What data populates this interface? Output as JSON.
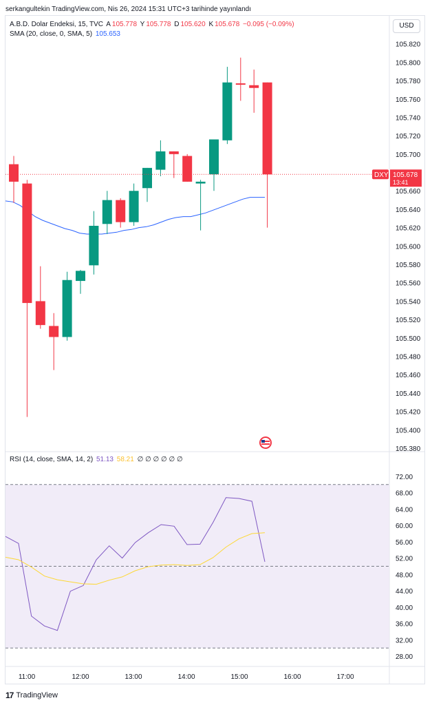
{
  "header": {
    "published": "serkangultekin TradingView.com, Nis 26, 2024 15:31 UTC+3 tarihinde yayınlandı"
  },
  "legend": {
    "symbol": "A.B.D. Dolar Endeksi, 15, TVC",
    "o_label": "A",
    "o_value": "105.778",
    "h_label": "Y",
    "h_value": "105.778",
    "l_label": "D",
    "l_value": "105.620",
    "c_label": "K",
    "c_value": "105.678",
    "change": "−0.095 (−0.09%)",
    "sma_label": "SMA (20, close, 0, SMA, 5)",
    "sma_value": "105.653"
  },
  "rsi_legend": {
    "label": "RSI (14, close, SMA, 14, 2)",
    "rsi_value": "51.13",
    "rsi_ma_value": "58.21",
    "placeholders": "∅ ∅ ∅ ∅ ∅ ∅"
  },
  "currency_button": "USD",
  "price_badge": {
    "symbol": "DXY",
    "price": "105.678",
    "countdown": "13:41"
  },
  "footer": {
    "brand": "TradingView",
    "logo": "17"
  },
  "colors": {
    "up": "#089981",
    "down": "#f23645",
    "sma": "#2962ff",
    "rsi": "#7e57c2",
    "rsi_ma": "#fdd835",
    "rsi_band": "#ede7f6"
  },
  "chart_data": [
    {
      "type": "candlestick",
      "interval": "15",
      "x_tick_labels": [
        "11:00",
        "12:00",
        "13:00",
        "14:00",
        "15:00",
        "16:00",
        "17:00"
      ],
      "y_ticks": [
        105.38,
        105.4,
        105.42,
        105.44,
        105.46,
        105.48,
        105.5,
        105.52,
        105.54,
        105.56,
        105.58,
        105.6,
        105.62,
        105.64,
        105.66,
        105.68,
        105.7,
        105.72,
        105.74,
        105.76,
        105.78,
        105.8,
        105.82
      ],
      "ylim": [
        105.377,
        105.828
      ],
      "candles": [
        {
          "time": "10:30",
          "o": 105.689,
          "h": 105.698,
          "l": 105.647,
          "c": 105.67
        },
        {
          "time": "10:45",
          "o": 105.668,
          "h": 105.672,
          "l": 105.414,
          "c": 105.538
        },
        {
          "time": "11:00",
          "o": 105.54,
          "h": 105.578,
          "l": 105.51,
          "c": 105.514
        },
        {
          "time": "11:15",
          "o": 105.513,
          "h": 105.527,
          "l": 105.465,
          "c": 105.501
        },
        {
          "time": "11:30",
          "o": 105.501,
          "h": 105.572,
          "l": 105.497,
          "c": 105.563
        },
        {
          "time": "11:45",
          "o": 105.562,
          "h": 105.574,
          "l": 105.548,
          "c": 105.573
        },
        {
          "time": "12:00",
          "o": 105.579,
          "h": 105.638,
          "l": 105.569,
          "c": 105.622
        },
        {
          "time": "12:15",
          "o": 105.624,
          "h": 105.66,
          "l": 105.613,
          "c": 105.65
        },
        {
          "time": "12:30",
          "o": 105.65,
          "h": 105.652,
          "l": 105.62,
          "c": 105.626
        },
        {
          "time": "12:45",
          "o": 105.626,
          "h": 105.668,
          "l": 105.622,
          "c": 105.66
        },
        {
          "time": "13:00",
          "o": 105.663,
          "h": 105.685,
          "l": 105.648,
          "c": 105.685
        },
        {
          "time": "13:15",
          "o": 105.683,
          "h": 105.715,
          "l": 105.676,
          "c": 105.703
        },
        {
          "time": "13:30",
          "o": 105.703,
          "h": 105.703,
          "l": 105.674,
          "c": 105.7
        },
        {
          "time": "13:45",
          "o": 105.698,
          "h": 105.7,
          "l": 105.67,
          "c": 105.67
        },
        {
          "time": "14:00",
          "o": 105.668,
          "h": 105.672,
          "l": 105.617,
          "c": 105.67
        },
        {
          "time": "14:15",
          "o": 105.678,
          "h": 105.716,
          "l": 105.66,
          "c": 105.716
        },
        {
          "time": "14:30",
          "o": 105.715,
          "h": 105.795,
          "l": 105.711,
          "c": 105.778
        },
        {
          "time": "14:45",
          "o": 105.777,
          "h": 105.805,
          "l": 105.758,
          "c": 105.776
        },
        {
          "time": "15:00",
          "o": 105.775,
          "h": 105.792,
          "l": 105.745,
          "c": 105.772
        },
        {
          "time": "15:15",
          "o": 105.778,
          "h": 105.778,
          "l": 105.62,
          "c": 105.678
        }
      ],
      "sma_series": {
        "name": "SMA (20, close, 0, SMA, 5)",
        "values": [
          105.649,
          105.648,
          105.644,
          105.638,
          105.632,
          105.628,
          105.625,
          105.622,
          105.619,
          105.617,
          105.614,
          105.613,
          105.613,
          105.613,
          105.614,
          105.615,
          105.617,
          105.618,
          105.62,
          105.621,
          105.623,
          105.626,
          105.629,
          105.631,
          105.632,
          105.632,
          105.634,
          105.636,
          105.639,
          105.642,
          105.645,
          105.648,
          105.651,
          105.653,
          105.653,
          105.653
        ]
      },
      "current_price": 105.678
    },
    {
      "type": "line",
      "x_tick_labels": [
        "11:00",
        "12:00",
        "13:00",
        "14:00",
        "15:00",
        "16:00",
        "17:00"
      ],
      "y_ticks": [
        28,
        32,
        36,
        40,
        44,
        48,
        52,
        56,
        60,
        64,
        68,
        72
      ],
      "ylim": [
        26.5,
        73.5
      ],
      "bands": {
        "upper": 70,
        "middle": 50,
        "lower": 30
      },
      "series": [
        {
          "name": "RSI",
          "values": [
            57.3,
            55.6,
            37.8,
            35.4,
            34.3,
            43.9,
            45.3,
            51.6,
            55.0,
            52.0,
            55.8,
            58.2,
            60.2,
            59.8,
            55.3,
            55.4,
            60.7,
            66.8,
            66.6,
            65.9,
            51.1
          ]
        },
        {
          "name": "RSI MA",
          "values": [
            52.2,
            51.6,
            49.8,
            47.6,
            46.7,
            46.2,
            45.7,
            45.6,
            46.6,
            47.4,
            48.9,
            49.9,
            50.3,
            50.4,
            50.2,
            50.4,
            52.1,
            54.7,
            56.7,
            58.0,
            58.2
          ]
        }
      ]
    }
  ]
}
